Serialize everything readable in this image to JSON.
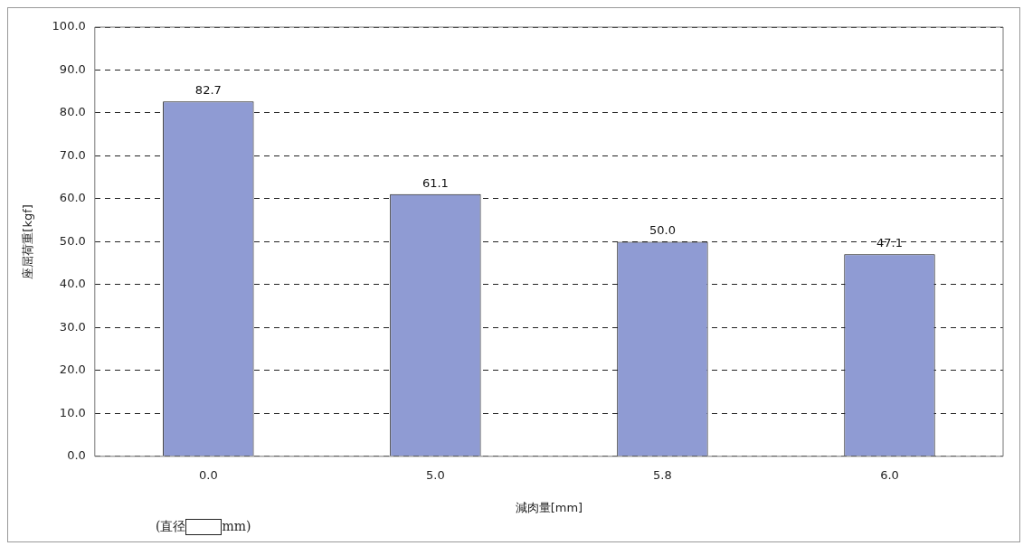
{
  "chart_data": {
    "type": "bar",
    "xlabel": "減肉量[mm]",
    "ylabel": "座屈荷重[kgf]",
    "categories": [
      "0.0",
      "5.0",
      "5.8",
      "6.0"
    ],
    "values": [
      82.7,
      61.1,
      50.0,
      47.1
    ],
    "color": "#8f9bd3",
    "ylim": [
      0,
      100
    ],
    "yticks": [
      {
        "value": 0,
        "label": "0.0"
      },
      {
        "value": 10,
        "label": "10.0"
      },
      {
        "value": 20,
        "label": "20.0"
      },
      {
        "value": 30,
        "label": "30.0"
      },
      {
        "value": 40,
        "label": "40.0"
      },
      {
        "value": 50,
        "label": "50.0"
      },
      {
        "value": 60,
        "label": "60.0"
      },
      {
        "value": 70,
        "label": "70.0"
      },
      {
        "value": 80,
        "label": "80.0"
      },
      {
        "value": 90,
        "label": "90.0"
      },
      {
        "value": 100,
        "label": "100.0"
      }
    ],
    "value_labels": [
      "82.7",
      "61.1",
      "50.0",
      "47.1"
    ],
    "grid": "y",
    "legend": false,
    "annotations": [
      "(直径　　mm)"
    ]
  }
}
